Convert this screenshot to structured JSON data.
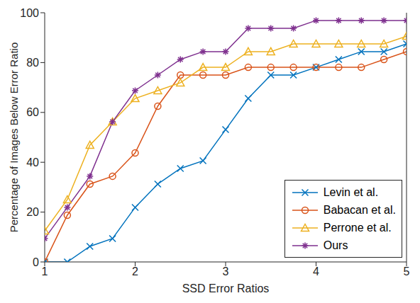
{
  "chart_data": {
    "type": "line",
    "x_label": "SSD Error Ratios",
    "y_label": "Percentage of Images Below Error Ratio",
    "x": [
      1,
      1.25,
      1.5,
      1.75,
      2,
      2.25,
      2.5,
      2.75,
      3,
      3.25,
      3.5,
      3.75,
      4,
      4.25,
      4.5,
      4.75,
      5
    ],
    "series": [
      {
        "name": "Levin et al.",
        "color": "#0072bd",
        "marker": "x",
        "values": [
          0,
          0,
          6.25,
          9.4,
          21.9,
          31.25,
          37.5,
          40.6,
          53.1,
          65.6,
          75,
          75,
          78.1,
          81.25,
          84.4,
          84.4,
          87.5
        ]
      },
      {
        "name": "Babacan et al.",
        "color": "#d95319",
        "marker": "o",
        "values": [
          0,
          18.75,
          31.25,
          34.4,
          43.75,
          62.5,
          75,
          75,
          75,
          78.1,
          78.1,
          78.1,
          78.1,
          78.1,
          78.1,
          81.25,
          84.4
        ]
      },
      {
        "name": "Perrone et al.",
        "color": "#edb120",
        "marker": "^",
        "values": [
          12.5,
          25,
          46.9,
          56.25,
          65.6,
          68.75,
          71.9,
          78.1,
          78.1,
          84.4,
          84.4,
          87.5,
          87.5,
          87.5,
          87.5,
          87.5,
          90.6
        ]
      },
      {
        "name": "Ours",
        "color": "#7e2f8e",
        "marker": "*",
        "values": [
          9.4,
          21.9,
          34.4,
          56.25,
          68.75,
          75,
          81.25,
          84.4,
          84.4,
          93.75,
          93.75,
          93.75,
          96.9,
          96.9,
          96.9,
          96.9,
          96.9
        ]
      }
    ],
    "xlim": [
      1,
      5
    ],
    "ylim": [
      0,
      100
    ],
    "xticks": [
      1,
      2,
      3,
      4,
      5
    ],
    "yticks": [
      0,
      20,
      40,
      60,
      80,
      100
    ],
    "grid": false,
    "legend": "lower right"
  }
}
